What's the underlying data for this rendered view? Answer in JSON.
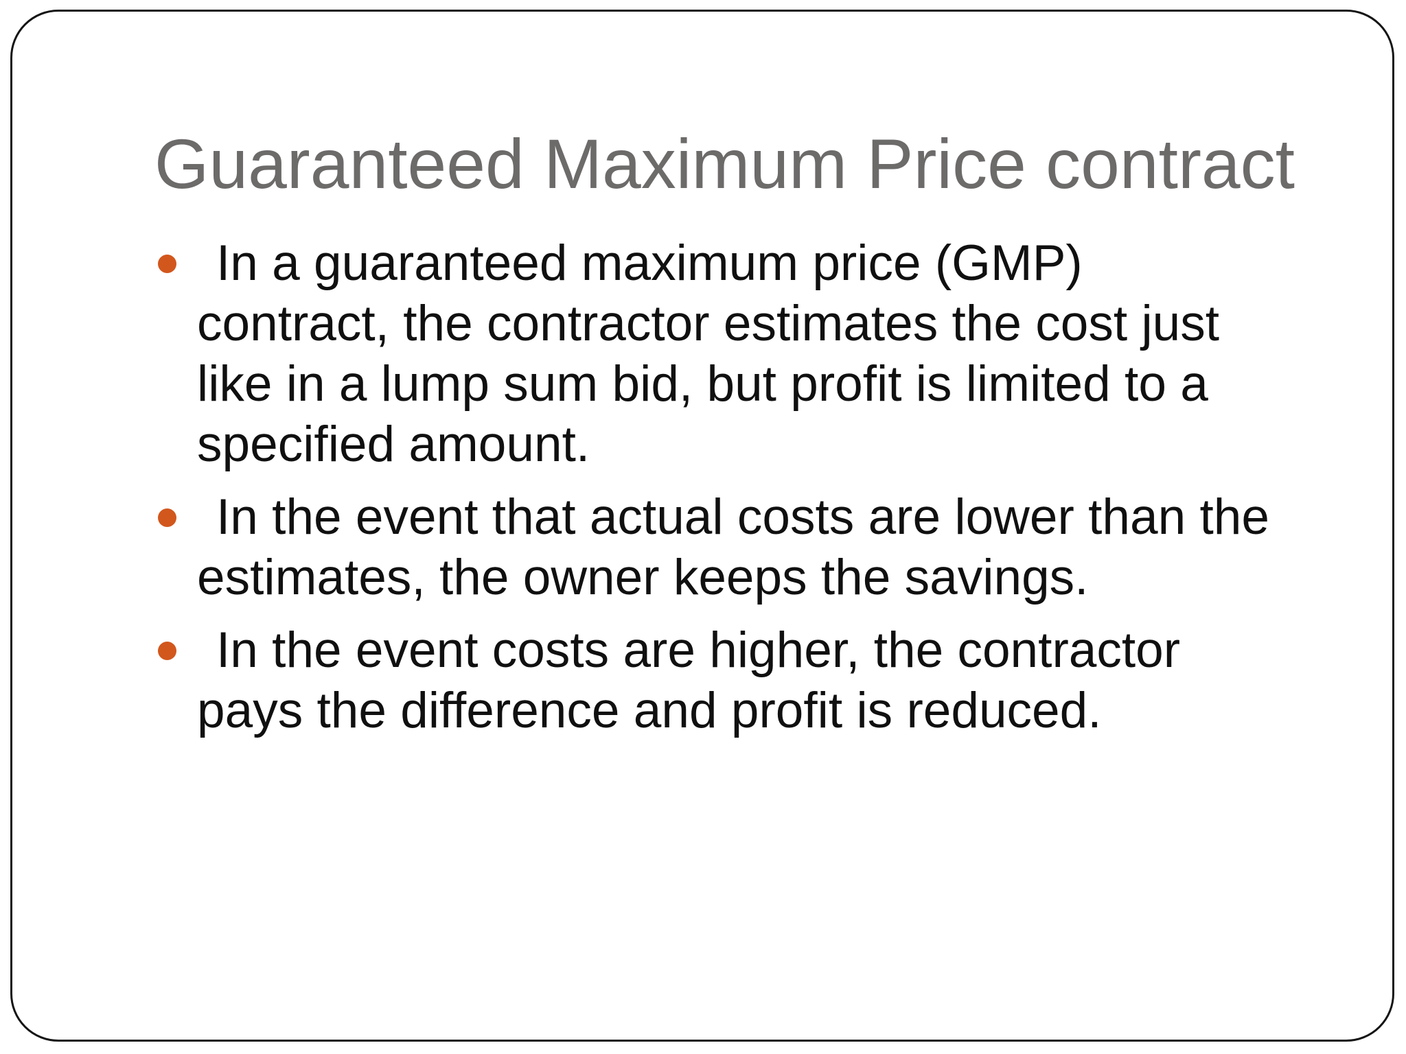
{
  "slide": {
    "title": "Guaranteed Maximum Price contract",
    "bullets": [
      {
        "text": "In a guaranteed maximum price (GMP) contract, the contractor estimates the cost just like in a lump sum bid, but profit is limited to a specified amount."
      },
      {
        "text": "In the event that actual costs are lower than the estimates, the owner keeps the savings."
      },
      {
        "text": "In the event costs are higher, the contractor pays the difference and profit is reduced."
      }
    ],
    "colors": {
      "title_text": "#6D6A6A",
      "body_text": "#101010",
      "bullet_marker": "#D2571D",
      "slide_border": "#151515",
      "background": "#FFFFFF"
    }
  }
}
